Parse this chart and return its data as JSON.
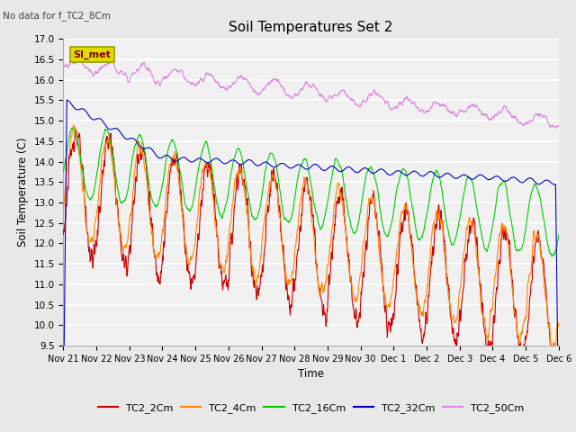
{
  "title": "Soil Temperatures Set 2",
  "subtitle": "No data for f_TC2_8Cm",
  "xlabel": "Time",
  "ylabel": "Soil Temperature (C)",
  "ylim": [
    9.5,
    17.0
  ],
  "yticks": [
    9.5,
    10.0,
    10.5,
    11.0,
    11.5,
    12.0,
    12.5,
    13.0,
    13.5,
    14.0,
    14.5,
    15.0,
    15.5,
    16.0,
    16.5,
    17.0
  ],
  "colors": {
    "TC2_2Cm": "#cc0000",
    "TC2_4Cm": "#ff8800",
    "TC2_16Cm": "#00cc00",
    "TC2_32Cm": "#0000cc",
    "TC2_50Cm": "#dd88dd"
  },
  "SI_met_box_facecolor": "#dddd00",
  "SI_met_box_edgecolor": "#999900",
  "SI_met_text_color": "#880000",
  "background_color": "#e8e8e8",
  "plot_bg_color": "#f0f0f0",
  "grid_color": "#ffffff",
  "n_points": 1440,
  "tick_labels": [
    "Nov 21",
    "Nov 22",
    "Nov 23",
    "Nov 24",
    "Nov 25",
    "Nov 26",
    "Nov 27",
    "Nov 28",
    "Nov 29",
    "Nov 30",
    "Dec 1",
    "Dec 2",
    "Dec 3",
    "Dec 4",
    "Dec 5",
    "Dec 6"
  ]
}
